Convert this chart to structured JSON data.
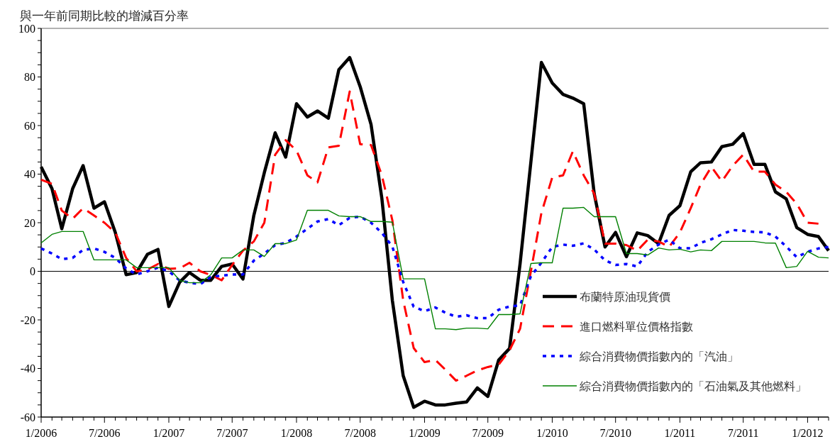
{
  "chart_data": {
    "type": "line",
    "ylabel": "與一年前同期比較的增減百分率",
    "x": [
      "2006-01",
      "2006-02",
      "2006-03",
      "2006-04",
      "2006-05",
      "2006-06",
      "2006-07",
      "2006-08",
      "2006-09",
      "2006-10",
      "2006-11",
      "2006-12",
      "2007-01",
      "2007-02",
      "2007-03",
      "2007-04",
      "2007-05",
      "2007-06",
      "2007-07",
      "2007-08",
      "2007-09",
      "2007-10",
      "2007-11",
      "2007-12",
      "2008-01",
      "2008-02",
      "2008-03",
      "2008-04",
      "2008-05",
      "2008-06",
      "2008-07",
      "2008-08",
      "2008-09",
      "2008-10",
      "2008-11",
      "2008-12",
      "2009-01",
      "2009-02",
      "2009-03",
      "2009-04",
      "2009-05",
      "2009-06",
      "2009-07",
      "2009-08",
      "2009-09",
      "2009-10",
      "2009-11",
      "2009-12",
      "2010-01",
      "2010-02",
      "2010-03",
      "2010-04",
      "2010-05",
      "2010-06",
      "2010-07",
      "2010-08",
      "2010-09",
      "2010-10",
      "2010-11",
      "2010-12",
      "2011-01",
      "2011-02",
      "2011-03",
      "2011-04",
      "2011-05",
      "2011-06",
      "2011-07",
      "2011-08",
      "2011-09",
      "2011-10",
      "2011-11",
      "2011-12",
      "2012-01",
      "2012-02",
      "2012-03"
    ],
    "series": [
      {
        "name": "布蘭特原油現貨價",
        "color": "#000000",
        "line_style": "solid",
        "values": [
          43,
          34,
          17.5,
          34,
          43.5,
          26,
          28.6,
          16,
          -1.4,
          -0.5,
          7,
          9,
          -14.5,
          -4.5,
          -0.5,
          -3.7,
          -3.7,
          2,
          3,
          -3.2,
          23,
          40.6,
          57,
          47,
          69,
          63.5,
          66,
          63,
          83,
          88,
          76,
          60.5,
          30,
          -12,
          -43,
          -56,
          -53.5,
          -55,
          -55,
          -54.3,
          -53.8,
          -48,
          -51.5,
          -36.5,
          -31.8,
          3,
          45,
          86,
          77.5,
          72.8,
          71.3,
          69,
          32,
          10,
          16,
          6,
          15.8,
          14.7,
          11.4,
          23,
          27,
          41,
          44.7,
          45,
          51.3,
          52.3,
          56.7,
          44,
          44,
          32.7,
          29.8,
          18,
          15.2,
          14.3,
          8.5
        ]
      },
      {
        "name": "進口燃料單位價格指數",
        "color": "#ff0000",
        "line_style": "dashed",
        "values": [
          37.7,
          36,
          25,
          21.6,
          26,
          23,
          20,
          16,
          5.5,
          0,
          0.7,
          3,
          1,
          1.2,
          3.5,
          0,
          -1.5,
          -3.7,
          2.6,
          8.5,
          12.3,
          20,
          48,
          54,
          49.7,
          39.5,
          36.6,
          51,
          51.7,
          74,
          52.3,
          52,
          39.5,
          21,
          -12,
          -31.6,
          -37.4,
          -36.5,
          -40.4,
          -45,
          -43,
          -40.8,
          -39.4,
          -38.4,
          -32.5,
          -23.7,
          0,
          24,
          38.6,
          39.5,
          49.4,
          39.5,
          32,
          11.4,
          11.4,
          10.8,
          8.5,
          13,
          12.3,
          10,
          16,
          26,
          35.7,
          43,
          37,
          43.5,
          48,
          41,
          41,
          35.7,
          32.7,
          27.8,
          20,
          19.6,
          null
        ]
      },
      {
        "name": "綜合消費物價指數內的「汽油」",
        "color": "#0000ff",
        "line_style": "dotted",
        "values": [
          9.4,
          7.3,
          5,
          5.5,
          8.8,
          9.4,
          8,
          5.5,
          1.2,
          -1.3,
          0,
          1.5,
          0,
          -3.8,
          -4.7,
          -5.3,
          -2.3,
          -1.8,
          -1.3,
          -1.3,
          4.4,
          7.3,
          10.8,
          11.7,
          14.3,
          17.5,
          20.5,
          21.5,
          19,
          22,
          22.5,
          20,
          15.8,
          10.2,
          -4.4,
          -14.6,
          -16.4,
          -14.9,
          -17,
          -18.7,
          -18.1,
          -19.3,
          -19.3,
          -15.8,
          -14.5,
          -14,
          -2,
          3.5,
          10,
          11,
          10.5,
          11.5,
          9,
          4.5,
          2.6,
          3,
          2,
          8,
          11,
          13,
          9.5,
          9.5,
          11.7,
          13.2,
          15.2,
          17,
          16.7,
          16.2,
          16,
          14.3,
          10.2,
          5.8,
          8,
          9.4,
          10
        ]
      },
      {
        "name": "綜合消費物價指數內的「石油氣及其他燃料」",
        "color": "#008000",
        "line_style": "solid",
        "values": [
          11.7,
          15.2,
          16.4,
          16.4,
          16.4,
          4.7,
          4.7,
          4.7,
          4.7,
          1.5,
          1.5,
          1.5,
          1.5,
          -3.8,
          -4.7,
          -4.7,
          -1.4,
          5.5,
          5.5,
          8.8,
          8.8,
          6.1,
          11.4,
          11.4,
          12.9,
          25.1,
          25.1,
          25.1,
          22.8,
          22.5,
          22.5,
          20.5,
          20.5,
          20.2,
          -3.1,
          -3.1,
          -3.1,
          -23.7,
          -23.7,
          -24,
          -23.4,
          -23.4,
          -23.7,
          -17.8,
          -17.8,
          -17.5,
          3.2,
          3.5,
          3.5,
          26,
          26,
          26.3,
          22.5,
          22.5,
          22.5,
          7.3,
          7.3,
          6.7,
          9.6,
          8.8,
          9.1,
          8,
          8.8,
          8.5,
          12.3,
          12.3,
          12.3,
          12.3,
          11.7,
          11.6,
          1.5,
          2,
          8.2,
          5.8,
          5.5
        ]
      }
    ],
    "xlim": [
      "2006-01",
      "2012-03"
    ],
    "xticks": [
      {
        "value": "2006-01",
        "label": "1/2006"
      },
      {
        "value": "2006-02",
        "label": null
      },
      {
        "value": "2006-03",
        "label": null
      },
      {
        "value": "2006-04",
        "label": null
      },
      {
        "value": "2006-05",
        "label": null
      },
      {
        "value": "2006-06",
        "label": null
      },
      {
        "value": "2006-07",
        "label": "7/2006"
      },
      {
        "value": "2006-08",
        "label": null
      },
      {
        "value": "2006-09",
        "label": null
      },
      {
        "value": "2006-10",
        "label": null
      },
      {
        "value": "2006-11",
        "label": null
      },
      {
        "value": "2006-12",
        "label": null
      },
      {
        "value": "2007-01",
        "label": "1/2007"
      },
      {
        "value": "2007-02",
        "label": null
      },
      {
        "value": "2007-03",
        "label": null
      },
      {
        "value": "2007-04",
        "label": null
      },
      {
        "value": "2007-05",
        "label": null
      },
      {
        "value": "2007-06",
        "label": null
      },
      {
        "value": "2007-07",
        "label": "7/2007"
      },
      {
        "value": "2007-08",
        "label": null
      },
      {
        "value": "2007-09",
        "label": null
      },
      {
        "value": "2007-10",
        "label": null
      },
      {
        "value": "2007-11",
        "label": null
      },
      {
        "value": "2007-12",
        "label": null
      },
      {
        "value": "2008-01",
        "label": "1/2008"
      },
      {
        "value": "2008-02",
        "label": null
      },
      {
        "value": "2008-03",
        "label": null
      },
      {
        "value": "2008-04",
        "label": null
      },
      {
        "value": "2008-05",
        "label": null
      },
      {
        "value": "2008-06",
        "label": null
      },
      {
        "value": "2008-07",
        "label": "7/2008"
      },
      {
        "value": "2008-08",
        "label": null
      },
      {
        "value": "2008-09",
        "label": null
      },
      {
        "value": "2008-10",
        "label": null
      },
      {
        "value": "2008-11",
        "label": null
      },
      {
        "value": "2008-12",
        "label": null
      },
      {
        "value": "2009-01",
        "label": "1/2009"
      },
      {
        "value": "2009-02",
        "label": null
      },
      {
        "value": "2009-03",
        "label": null
      },
      {
        "value": "2009-04",
        "label": null
      },
      {
        "value": "2009-05",
        "label": null
      },
      {
        "value": "2009-06",
        "label": null
      },
      {
        "value": "2009-07",
        "label": "7/2009"
      },
      {
        "value": "2009-08",
        "label": null
      },
      {
        "value": "2009-09",
        "label": null
      },
      {
        "value": "2009-10",
        "label": null
      },
      {
        "value": "2009-11",
        "label": null
      },
      {
        "value": "2009-12",
        "label": null
      },
      {
        "value": "2010-01",
        "label": "1/2010"
      },
      {
        "value": "2010-02",
        "label": null
      },
      {
        "value": "2010-03",
        "label": null
      },
      {
        "value": "2010-04",
        "label": null
      },
      {
        "value": "2010-05",
        "label": null
      },
      {
        "value": "2010-06",
        "label": null
      },
      {
        "value": "2010-07",
        "label": "7/2010"
      },
      {
        "value": "2010-08",
        "label": null
      },
      {
        "value": "2010-09",
        "label": null
      },
      {
        "value": "2010-10",
        "label": null
      },
      {
        "value": "2010-11",
        "label": null
      },
      {
        "value": "2010-12",
        "label": null
      },
      {
        "value": "2011-01",
        "label": "1/2011"
      },
      {
        "value": "2011-02",
        "label": null
      },
      {
        "value": "2011-03",
        "label": null
      },
      {
        "value": "2011-04",
        "label": null
      },
      {
        "value": "2011-05",
        "label": null
      },
      {
        "value": "2011-06",
        "label": null
      },
      {
        "value": "2011-07",
        "label": "7/2011"
      },
      {
        "value": "2011-08",
        "label": null
      },
      {
        "value": "2011-09",
        "label": null
      },
      {
        "value": "2011-10",
        "label": null
      },
      {
        "value": "2011-11",
        "label": null
      },
      {
        "value": "2011-12",
        "label": null
      },
      {
        "value": "2012-01",
        "label": "1/2012"
      },
      {
        "value": "2012-02",
        "label": null
      },
      {
        "value": "2012-03",
        "label": null
      }
    ],
    "ylim": [
      -60,
      100
    ],
    "yticks": [
      -60,
      {
        "value": -55,
        "label": null
      },
      {
        "value": -50,
        "label": null
      },
      {
        "value": -45,
        "label": null
      },
      -40,
      {
        "value": -35,
        "label": null
      },
      {
        "value": -30,
        "label": null
      },
      {
        "value": -25,
        "label": null
      },
      -20,
      {
        "value": -15,
        "label": null
      },
      {
        "value": -10,
        "label": null
      },
      {
        "value": -5,
        "label": null
      },
      0,
      {
        "value": 5,
        "label": null
      },
      {
        "value": 10,
        "label": null
      },
      {
        "value": 15,
        "label": null
      },
      20,
      {
        "value": 25,
        "label": null
      },
      {
        "value": 30,
        "label": null
      },
      {
        "value": 35,
        "label": null
      },
      40,
      {
        "value": 45,
        "label": null
      },
      {
        "value": 50,
        "label": null
      },
      {
        "value": 55,
        "label": null
      },
      60,
      {
        "value": 65,
        "label": null
      },
      {
        "value": 70,
        "label": null
      },
      {
        "value": 75,
        "label": null
      },
      80,
      {
        "value": 85,
        "label": null
      },
      {
        "value": 90,
        "label": null
      },
      {
        "value": 95,
        "label": null
      },
      100
    ],
    "ref_lines": [
      {
        "axis": "y",
        "value": 0,
        "color": "#000000"
      }
    ],
    "grid": false,
    "legend": "bottom right"
  }
}
